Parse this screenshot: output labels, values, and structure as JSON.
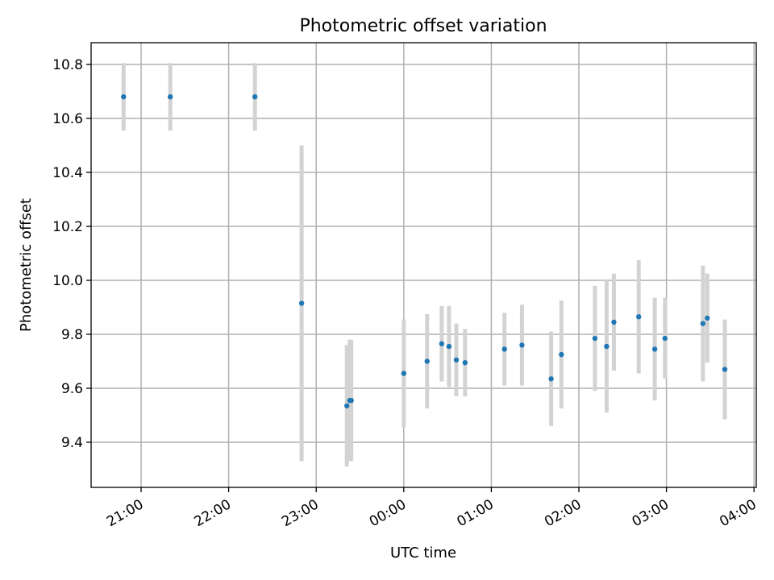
{
  "chart_data": {
    "type": "scatter",
    "title": "Photometric offset variation",
    "xlabel": "UTC time",
    "ylabel": "Photometric offset",
    "x_ticks": [
      "21:00",
      "22:00",
      "23:00",
      "00:00",
      "01:00",
      "02:00",
      "03:00",
      "04:00"
    ],
    "y_ticks": [
      "9.4",
      "9.6",
      "9.8",
      "10.0",
      "10.2",
      "10.4",
      "10.6",
      "10.8"
    ],
    "grid": true,
    "series_color": "#1f77b4",
    "errorbar_color": "#d3d3d3",
    "points": [
      {
        "x": "20:48",
        "y": 10.68,
        "err": 0.125
      },
      {
        "x": "21:20",
        "y": 10.68,
        "err": 0.125
      },
      {
        "x": "22:18",
        "y": 10.68,
        "err": 0.125
      },
      {
        "x": "22:50",
        "y": 9.915,
        "err": 0.585
      },
      {
        "x": "23:21",
        "y": 9.535,
        "err": 0.225
      },
      {
        "x": "23:23",
        "y": 9.555,
        "err": 0.225
      },
      {
        "x": "23:24",
        "y": 9.555,
        "err": 0.225
      },
      {
        "x": "00:00",
        "y": 9.655,
        "err": 0.2
      },
      {
        "x": "00:16",
        "y": 9.7,
        "err": 0.175
      },
      {
        "x": "00:26",
        "y": 9.765,
        "err": 0.14
      },
      {
        "x": "00:31",
        "y": 9.755,
        "err": 0.15
      },
      {
        "x": "00:36",
        "y": 9.705,
        "err": 0.135
      },
      {
        "x": "00:42",
        "y": 9.695,
        "err": 0.125
      },
      {
        "x": "01:09",
        "y": 9.745,
        "err": 0.135
      },
      {
        "x": "01:21",
        "y": 9.76,
        "err": 0.15
      },
      {
        "x": "01:41",
        "y": 9.635,
        "err": 0.175
      },
      {
        "x": "01:48",
        "y": 9.725,
        "err": 0.2
      },
      {
        "x": "02:11",
        "y": 9.785,
        "err": 0.195
      },
      {
        "x": "02:19",
        "y": 9.755,
        "err": 0.245
      },
      {
        "x": "02:24",
        "y": 9.845,
        "err": 0.18
      },
      {
        "x": "02:41",
        "y": 9.865,
        "err": 0.21
      },
      {
        "x": "02:52",
        "y": 9.745,
        "err": 0.19
      },
      {
        "x": "02:59",
        "y": 9.785,
        "err": 0.15
      },
      {
        "x": "03:25",
        "y": 9.84,
        "err": 0.215
      },
      {
        "x": "03:28",
        "y": 9.86,
        "err": 0.165
      },
      {
        "x": "03:40",
        "y": 9.67,
        "err": 0.185
      }
    ]
  }
}
